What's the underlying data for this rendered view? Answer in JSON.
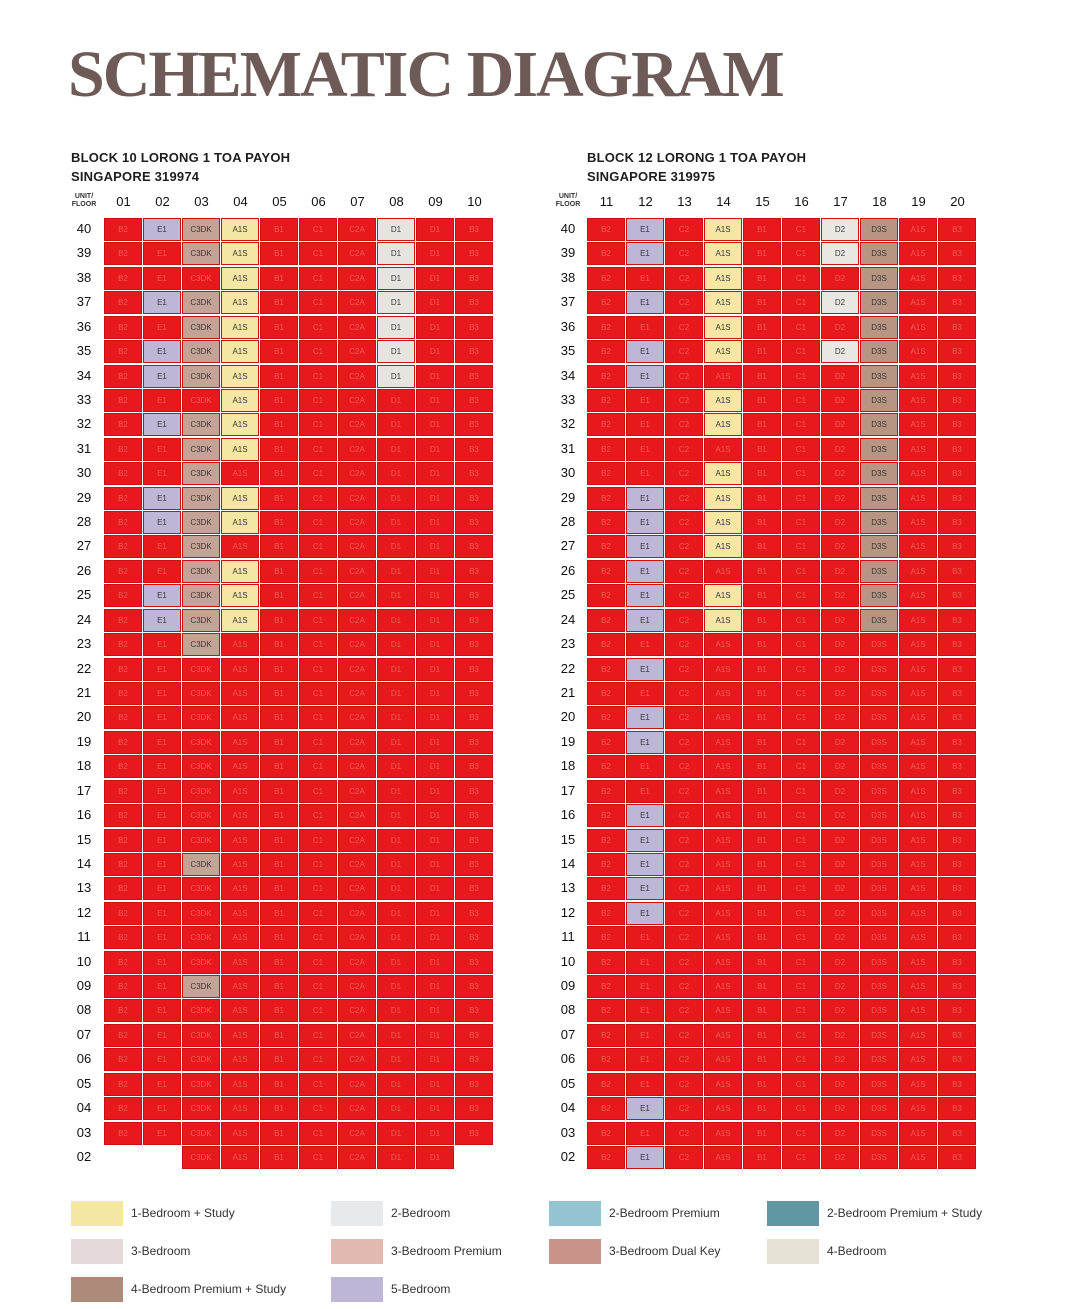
{
  "title": "SCHEMATIC DIAGRAM",
  "header_label": "UNIT/\nFLOOR",
  "blocks": [
    {
      "name": "BLOCK 10 LORONG 1 TOA PAYOH",
      "postal": "SINGAPORE 319974",
      "units": [
        "01",
        "02",
        "03",
        "04",
        "05",
        "06",
        "07",
        "08",
        "09",
        "10"
      ],
      "types": [
        "B2",
        "E1",
        "C3DK",
        "A1S",
        "B1",
        "C1",
        "C2A",
        "D1",
        "D1",
        "B3"
      ],
      "highlight_color": {
        "E1": "#bdb6d6",
        "C3DK": "#c4a396",
        "A1S": "#f5e6a3",
        "D1": "#e7e4df"
      },
      "available": {
        "40": [
          "02",
          "03",
          "04",
          "08"
        ],
        "39": [
          "03",
          "04",
          "08"
        ],
        "38": [
          "04",
          "08"
        ],
        "37": [
          "02",
          "03",
          "04",
          "08"
        ],
        "36": [
          "03",
          "04",
          "08"
        ],
        "35": [
          "02",
          "03",
          "04",
          "08"
        ],
        "34": [
          "02",
          "03",
          "04",
          "08"
        ],
        "33": [
          "04"
        ],
        "32": [
          "02",
          "03",
          "04"
        ],
        "31": [
          "03",
          "04"
        ],
        "30": [
          "03"
        ],
        "29": [
          "02",
          "03",
          "04"
        ],
        "28": [
          "02",
          "03",
          "04"
        ],
        "27": [
          "03"
        ],
        "26": [
          "03",
          "04"
        ],
        "25": [
          "02",
          "03",
          "04"
        ],
        "24": [
          "02",
          "03",
          "04"
        ],
        "23": [
          "03"
        ],
        "14": [
          "03"
        ],
        "09": [
          "03"
        ]
      },
      "missing": {
        "02": [
          "01",
          "02",
          "10"
        ]
      }
    },
    {
      "name": "BLOCK 12 LORONG 1 TOA PAYOH",
      "postal": "SINGAPORE 319975",
      "units": [
        "11",
        "12",
        "13",
        "14",
        "15",
        "16",
        "17",
        "18",
        "19",
        "20"
      ],
      "types": [
        "B2",
        "E1",
        "C2",
        "A1S",
        "B1",
        "C1",
        "D2",
        "D3S",
        "A1S",
        "B3"
      ],
      "highlight_color": {
        "E1": "#bdb6d6",
        "A1S": "#f5e6a3",
        "D2": "#eae7e3",
        "D3S": "#b79582"
      },
      "available": {
        "40": [
          "12",
          "14",
          "17",
          "18"
        ],
        "39": [
          "12",
          "14",
          "17",
          "18"
        ],
        "38": [
          "14",
          "18"
        ],
        "37": [
          "12",
          "14",
          "17",
          "18"
        ],
        "36": [
          "14",
          "18"
        ],
        "35": [
          "12",
          "14",
          "17",
          "18"
        ],
        "34": [
          "12",
          "18"
        ],
        "33": [
          "14",
          "18"
        ],
        "32": [
          "14",
          "18"
        ],
        "31": [
          "18"
        ],
        "30": [
          "14",
          "18"
        ],
        "29": [
          "12",
          "14",
          "18"
        ],
        "28": [
          "12",
          "14",
          "18"
        ],
        "27": [
          "12",
          "14",
          "18"
        ],
        "26": [
          "12",
          "18"
        ],
        "25": [
          "12",
          "14",
          "18"
        ],
        "24": [
          "12",
          "14",
          "18"
        ],
        "22": [
          "12"
        ],
        "20": [
          "12"
        ],
        "19": [
          "12"
        ],
        "16": [
          "12"
        ],
        "15": [
          "12"
        ],
        "14": [
          "12"
        ],
        "13": [
          "12"
        ],
        "12": [
          "12"
        ],
        "04": [
          "12"
        ],
        "02": [
          "12"
        ]
      },
      "missing": {}
    }
  ],
  "floors": [
    "40",
    "39",
    "38",
    "37",
    "36",
    "35",
    "34",
    "33",
    "32",
    "31",
    "30",
    "29",
    "28",
    "27",
    "26",
    "25",
    "24",
    "23",
    "22",
    "21",
    "20",
    "19",
    "18",
    "17",
    "16",
    "15",
    "14",
    "13",
    "12",
    "11",
    "10",
    "09",
    "08",
    "07",
    "06",
    "05",
    "04",
    "03",
    "02"
  ],
  "legend": [
    {
      "label": "1-Bedroom + Study",
      "color": "#f5e6a3"
    },
    {
      "label": "2-Bedroom",
      "color": "#e8e9ea"
    },
    {
      "label": "2-Bedroom Premium",
      "color": "#94c3d2"
    },
    {
      "label": "2-Bedroom Premium + Study",
      "color": "#5f97a3"
    },
    {
      "label": "3-Bedroom",
      "color": "#e5d8d8"
    },
    {
      "label": "3-Bedroom Premium",
      "color": "#e2b9b0"
    },
    {
      "label": "3-Bedroom Dual Key",
      "color": "#c89489"
    },
    {
      "label": "4-Bedroom",
      "color": "#e5e2d5"
    },
    {
      "label": "4-Bedroom Premium + Study",
      "color": "#ad8a79"
    },
    {
      "label": "5-Bedroom",
      "color": "#bdb6d6"
    }
  ]
}
